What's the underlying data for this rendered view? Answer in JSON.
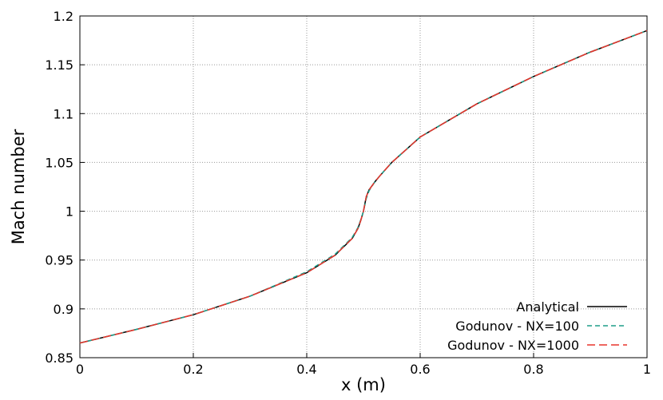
{
  "chart_data": {
    "type": "line",
    "x_label": "x (m)",
    "y_label": "Mach number",
    "x": [
      0,
      0.1,
      0.2,
      0.3,
      0.4,
      0.45,
      0.48,
      0.49,
      0.495,
      0.5,
      0.505,
      0.51,
      0.52,
      0.53,
      0.55,
      0.6,
      0.7,
      0.8,
      0.9,
      1
    ],
    "series": [
      {
        "name": "Analytical",
        "color": "#000000",
        "dash": "solid",
        "values": [
          0.865,
          0.879,
          0.894,
          0.913,
          0.937,
          0.955,
          0.972,
          0.982,
          0.99,
          1.0,
          1.015,
          1.022,
          1.03,
          1.037,
          1.05,
          1.076,
          1.11,
          1.138,
          1.163,
          1.185
        ]
      },
      {
        "name": "Godunov - NX=100",
        "color": "#1f9e89",
        "dash": "dashed",
        "values": [
          0.865,
          0.879,
          0.894,
          0.913,
          0.938,
          0.956,
          0.973,
          0.983,
          0.991,
          1.0,
          1.013,
          1.021,
          1.03,
          1.037,
          1.05,
          1.076,
          1.11,
          1.138,
          1.163,
          1.185
        ]
      },
      {
        "name": "Godunov - NX=1000",
        "color": "#e8352b",
        "dash": "longdash",
        "values": [
          0.865,
          0.879,
          0.894,
          0.913,
          0.937,
          0.955,
          0.972,
          0.982,
          0.99,
          1.0,
          1.015,
          1.022,
          1.03,
          1.037,
          1.05,
          1.076,
          1.11,
          1.138,
          1.163,
          1.185
        ]
      }
    ],
    "xlim": [
      0,
      1
    ],
    "xticks": [
      0,
      0.2,
      0.4,
      0.6,
      0.8,
      1
    ],
    "ylim": [
      0.85,
      1.2
    ],
    "yticks": [
      0.85,
      0.9,
      0.95,
      1,
      1.05,
      1.1,
      1.15,
      1.2
    ],
    "grid": true,
    "legend": "bottom-right"
  }
}
